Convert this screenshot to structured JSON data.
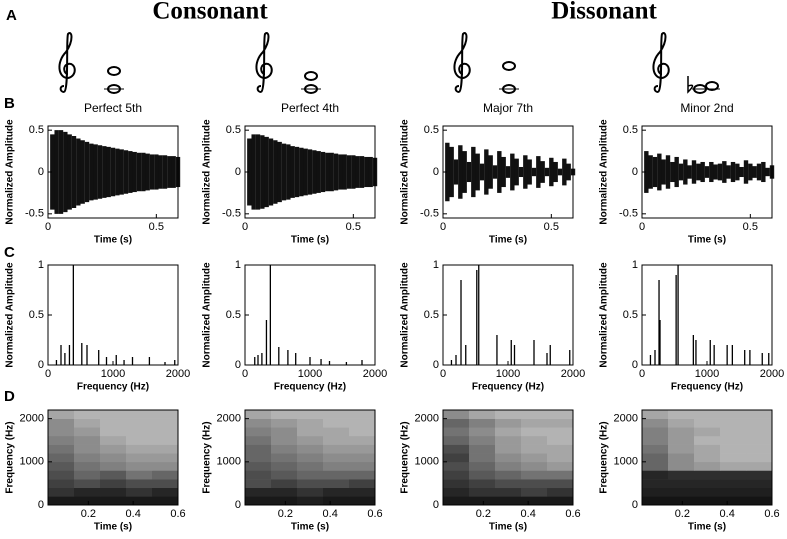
{
  "figure": {
    "panel_labels": [
      "A",
      "B",
      "C",
      "D"
    ],
    "group_titles": [
      "Consonant",
      "Dissonant"
    ]
  },
  "chart_data": [
    {
      "type": "waveform",
      "title": "Perfect 5th",
      "xlabel": "Time (s)",
      "ylabel": "Normalized Amplitude",
      "color": "#111111",
      "x": [
        0,
        0.02,
        0.04,
        0.06,
        0.08,
        0.1,
        0.12,
        0.14,
        0.16,
        0.18,
        0.2,
        0.22,
        0.24,
        0.26,
        0.28,
        0.3,
        0.32,
        0.34,
        0.36,
        0.38,
        0.4,
        0.42,
        0.44,
        0.46,
        0.48,
        0.5,
        0.52,
        0.54,
        0.56,
        0.58,
        0.6
      ],
      "values": [
        0,
        0.45,
        0.5,
        0.5,
        0.48,
        0.45,
        0.43,
        0.4,
        0.38,
        0.36,
        0.34,
        0.33,
        0.32,
        0.31,
        0.3,
        0.29,
        0.28,
        0.27,
        0.26,
        0.25,
        0.24,
        0.23,
        0.23,
        0.22,
        0.21,
        0.21,
        0.2,
        0.2,
        0.19,
        0.19,
        0.18
      ],
      "xlim": [
        0,
        0.6
      ],
      "ylim": [
        -0.55,
        0.55
      ],
      "xticks": [
        0,
        0.5
      ],
      "yticks": [
        -0.5,
        0,
        0.5
      ]
    },
    {
      "type": "waveform",
      "title": "Perfect 4th",
      "xlabel": "Time (s)",
      "ylabel": "Normalized Amplitude",
      "color": "#111111",
      "x": [
        0,
        0.02,
        0.04,
        0.06,
        0.08,
        0.1,
        0.12,
        0.14,
        0.16,
        0.18,
        0.2,
        0.22,
        0.24,
        0.26,
        0.28,
        0.3,
        0.32,
        0.34,
        0.36,
        0.38,
        0.4,
        0.42,
        0.44,
        0.46,
        0.48,
        0.5,
        0.52,
        0.54,
        0.56,
        0.58,
        0.6
      ],
      "values": [
        0,
        0.4,
        0.45,
        0.45,
        0.44,
        0.42,
        0.4,
        0.38,
        0.36,
        0.34,
        0.33,
        0.31,
        0.3,
        0.29,
        0.28,
        0.27,
        0.26,
        0.25,
        0.24,
        0.23,
        0.23,
        0.22,
        0.21,
        0.21,
        0.2,
        0.2,
        0.19,
        0.19,
        0.18,
        0.18,
        0.17
      ],
      "xlim": [
        0,
        0.6
      ],
      "ylim": [
        -0.55,
        0.55
      ],
      "xticks": [
        0,
        0.5
      ],
      "yticks": [
        -0.5,
        0,
        0.5
      ]
    },
    {
      "type": "waveform",
      "title": "Major 7th",
      "xlabel": "Time (s)",
      "ylabel": "Normalized Amplitude",
      "color": "#111111",
      "x": [
        0,
        0.02,
        0.04,
        0.06,
        0.08,
        0.1,
        0.12,
        0.14,
        0.16,
        0.18,
        0.2,
        0.22,
        0.24,
        0.26,
        0.28,
        0.3,
        0.32,
        0.34,
        0.36,
        0.38,
        0.4,
        0.42,
        0.44,
        0.46,
        0.48,
        0.5,
        0.52,
        0.54,
        0.56,
        0.58,
        0.6
      ],
      "values": [
        0,
        0.35,
        0.3,
        0.15,
        0.32,
        0.25,
        0.12,
        0.3,
        0.22,
        0.1,
        0.27,
        0.2,
        0.08,
        0.25,
        0.18,
        0.07,
        0.22,
        0.16,
        0.06,
        0.2,
        0.15,
        0.05,
        0.19,
        0.13,
        0.05,
        0.17,
        0.12,
        0.04,
        0.16,
        0.1,
        0.04
      ],
      "xlim": [
        0,
        0.6
      ],
      "ylim": [
        -0.55,
        0.55
      ],
      "xticks": [
        0,
        0.5
      ],
      "yticks": [
        -0.5,
        0,
        0.5
      ]
    },
    {
      "type": "waveform",
      "title": "Minor 2nd",
      "xlabel": "Time (s)",
      "ylabel": "Normalized Amplitude",
      "color": "#111111",
      "x": [
        0,
        0.02,
        0.04,
        0.06,
        0.08,
        0.1,
        0.12,
        0.14,
        0.16,
        0.18,
        0.2,
        0.22,
        0.24,
        0.26,
        0.28,
        0.3,
        0.32,
        0.34,
        0.36,
        0.38,
        0.4,
        0.42,
        0.44,
        0.46,
        0.48,
        0.5,
        0.52,
        0.54,
        0.56,
        0.58,
        0.6
      ],
      "values": [
        0,
        0.25,
        0.2,
        0.18,
        0.22,
        0.15,
        0.2,
        0.12,
        0.18,
        0.1,
        0.15,
        0.08,
        0.14,
        0.1,
        0.12,
        0.07,
        0.12,
        0.09,
        0.1,
        0.13,
        0.08,
        0.12,
        0.1,
        0.06,
        0.14,
        0.1,
        0.07,
        0.1,
        0.12,
        0.05,
        0.08
      ],
      "xlim": [
        0,
        0.6
      ],
      "ylim": [
        -0.55,
        0.55
      ],
      "xticks": [
        0,
        0.5
      ],
      "yticks": [
        -0.5,
        0,
        0.5
      ]
    },
    {
      "type": "stem",
      "xlabel": "Frequency (Hz)",
      "ylabel": "Normalized Amplitude",
      "color": "#000000",
      "x": [
        130,
        200,
        260,
        330,
        390,
        520,
        600,
        780,
        900,
        1050,
        1170,
        1300,
        1560,
        1800,
        1950
      ],
      "values": [
        0.05,
        0.2,
        0.12,
        0.2,
        1,
        0.22,
        0.2,
        0.15,
        0.08,
        0.1,
        0.05,
        0.08,
        0.08,
        0.03,
        0.05
      ],
      "xlim": [
        0,
        2000
      ],
      "ylim": [
        0,
        1
      ],
      "xticks": [
        0,
        1000,
        2000
      ],
      "yticks": [
        0,
        0.5,
        1
      ]
    },
    {
      "type": "stem",
      "xlabel": "Frequency (Hz)",
      "ylabel": "Normalized Amplitude",
      "color": "#000000",
      "x": [
        150,
        200,
        260,
        330,
        390,
        520,
        660,
        780,
        1000,
        1170,
        1300,
        1560,
        1800
      ],
      "values": [
        0.08,
        0.1,
        0.12,
        0.45,
        1,
        0.18,
        0.15,
        0.12,
        0.08,
        0.06,
        0.04,
        0.03,
        0.05
      ],
      "xlim": [
        0,
        2000
      ],
      "ylim": [
        0,
        1
      ],
      "xticks": [
        0,
        1000,
        2000
      ],
      "yticks": [
        0,
        0.5,
        1
      ]
    },
    {
      "type": "stem",
      "xlabel": "Frequency (Hz)",
      "ylabel": "Normalized Amplitude",
      "color": "#000000",
      "x": [
        130,
        200,
        277,
        350,
        520,
        550,
        830,
        1050,
        1100,
        1400,
        1600,
        1650,
        1950
      ],
      "values": [
        0.05,
        0.1,
        0.85,
        0.2,
        0.95,
        1,
        0.3,
        0.25,
        0.2,
        0.25,
        0.12,
        0.2,
        0.15
      ],
      "xlim": [
        0,
        2000
      ],
      "ylim": [
        0,
        1
      ],
      "xticks": [
        0,
        1000,
        2000
      ],
      "yticks": [
        0,
        0.5,
        1
      ]
    },
    {
      "type": "stem",
      "xlabel": "Frequency (Hz)",
      "ylabel": "Normalized Amplitude",
      "color": "#000000",
      "x": [
        130,
        200,
        262,
        277,
        525,
        555,
        790,
        830,
        1050,
        1110,
        1310,
        1390,
        1580,
        1660,
        1850,
        1950
      ],
      "values": [
        0.1,
        0.15,
        0.85,
        0.45,
        0.9,
        1,
        0.3,
        0.25,
        0.25,
        0.2,
        0.2,
        0.2,
        0.15,
        0.15,
        0.12,
        0.12
      ],
      "xlim": [
        0,
        2000
      ],
      "ylim": [
        0,
        1
      ],
      "xticks": [
        0,
        1000,
        2000
      ],
      "yticks": [
        0,
        0.5,
        1
      ]
    },
    {
      "type": "heatmap",
      "xlabel": "Time (s)",
      "ylabel": "Frequency (Hz)",
      "colormap": "gray",
      "z": [
        [
          0.9,
          0.9,
          0.9,
          0.9,
          0.9
        ],
        [
          0.8,
          0.85,
          0.85,
          0.8,
          0.85
        ],
        [
          0.75,
          0.7,
          0.75,
          0.7,
          0.7
        ],
        [
          0.7,
          0.6,
          0.65,
          0.55,
          0.6
        ],
        [
          0.65,
          0.55,
          0.5,
          0.45,
          0.45
        ],
        [
          0.6,
          0.5,
          0.45,
          0.4,
          0.4
        ],
        [
          0.55,
          0.45,
          0.4,
          0.35,
          0.35
        ],
        [
          0.5,
          0.45,
          0.35,
          0.3,
          0.3
        ],
        [
          0.45,
          0.4,
          0.3,
          0.3,
          0.3
        ],
        [
          0.45,
          0.35,
          0.3,
          0.3,
          0.3
        ],
        [
          0.35,
          0.3,
          0.3,
          0.3,
          0.3
        ]
      ],
      "xlim": [
        0.02,
        0.6
      ],
      "ylim": [
        0,
        2200
      ],
      "xticks": [
        0.2,
        0.4,
        0.6
      ],
      "yticks": [
        0,
        1000,
        2000
      ]
    },
    {
      "type": "heatmap",
      "xlabel": "Time (s)",
      "ylabel": "Frequency (Hz)",
      "colormap": "gray",
      "z": [
        [
          0.9,
          0.9,
          0.88,
          0.9,
          0.9
        ],
        [
          0.85,
          0.85,
          0.8,
          0.85,
          0.85
        ],
        [
          0.7,
          0.75,
          0.7,
          0.7,
          0.75
        ],
        [
          0.7,
          0.65,
          0.6,
          0.6,
          0.6
        ],
        [
          0.65,
          0.6,
          0.55,
          0.5,
          0.5
        ],
        [
          0.6,
          0.55,
          0.5,
          0.45,
          0.45
        ],
        [
          0.6,
          0.5,
          0.45,
          0.4,
          0.4
        ],
        [
          0.55,
          0.45,
          0.4,
          0.35,
          0.35
        ],
        [
          0.5,
          0.45,
          0.35,
          0.35,
          0.3
        ],
        [
          0.45,
          0.4,
          0.35,
          0.3,
          0.3
        ],
        [
          0.35,
          0.3,
          0.3,
          0.3,
          0.3
        ]
      ],
      "xlim": [
        0.02,
        0.6
      ],
      "ylim": [
        0,
        2200
      ],
      "xticks": [
        0.2,
        0.4,
        0.6
      ],
      "yticks": [
        0,
        1000,
        2000
      ]
    },
    {
      "type": "heatmap",
      "xlabel": "Time (s)",
      "ylabel": "Frequency (Hz)",
      "colormap": "gray",
      "z": [
        [
          0.9,
          0.9,
          0.9,
          0.9,
          0.9
        ],
        [
          0.85,
          0.8,
          0.8,
          0.75,
          0.8
        ],
        [
          0.8,
          0.75,
          0.7,
          0.7,
          0.7
        ],
        [
          0.75,
          0.65,
          0.6,
          0.55,
          0.55
        ],
        [
          0.7,
          0.6,
          0.5,
          0.45,
          0.4
        ],
        [
          0.75,
          0.55,
          0.45,
          0.4,
          0.35
        ],
        [
          0.7,
          0.55,
          0.4,
          0.35,
          0.35
        ],
        [
          0.6,
          0.5,
          0.4,
          0.35,
          0.3
        ],
        [
          0.55,
          0.45,
          0.35,
          0.3,
          0.3
        ],
        [
          0.6,
          0.5,
          0.4,
          0.35,
          0.35
        ],
        [
          0.45,
          0.35,
          0.3,
          0.3,
          0.3
        ]
      ],
      "xlim": [
        0.02,
        0.6
      ],
      "ylim": [
        0,
        2200
      ],
      "xticks": [
        0.2,
        0.4,
        0.6
      ],
      "yticks": [
        0,
        1000,
        2000
      ]
    },
    {
      "type": "heatmap",
      "xlabel": "Time (s)",
      "ylabel": "Frequency (Hz)",
      "colormap": "gray",
      "z": [
        [
          0.92,
          0.92,
          0.92,
          0.92,
          0.92
        ],
        [
          0.88,
          0.88,
          0.88,
          0.88,
          0.88
        ],
        [
          0.85,
          0.85,
          0.85,
          0.85,
          0.85
        ],
        [
          0.85,
          0.82,
          0.82,
          0.82,
          0.82
        ],
        [
          0.6,
          0.45,
          0.4,
          0.35,
          0.35
        ],
        [
          0.6,
          0.45,
          0.35,
          0.3,
          0.3
        ],
        [
          0.55,
          0.4,
          0.35,
          0.3,
          0.3
        ],
        [
          0.5,
          0.4,
          0.3,
          0.3,
          0.3
        ],
        [
          0.5,
          0.4,
          0.35,
          0.3,
          0.3
        ],
        [
          0.45,
          0.35,
          0.3,
          0.3,
          0.3
        ],
        [
          0.35,
          0.3,
          0.3,
          0.3,
          0.3
        ]
      ],
      "xlim": [
        0.02,
        0.6
      ],
      "ylim": [
        0,
        2200
      ],
      "xticks": [
        0.2,
        0.4,
        0.6
      ],
      "yticks": [
        0,
        1000,
        2000
      ]
    }
  ]
}
